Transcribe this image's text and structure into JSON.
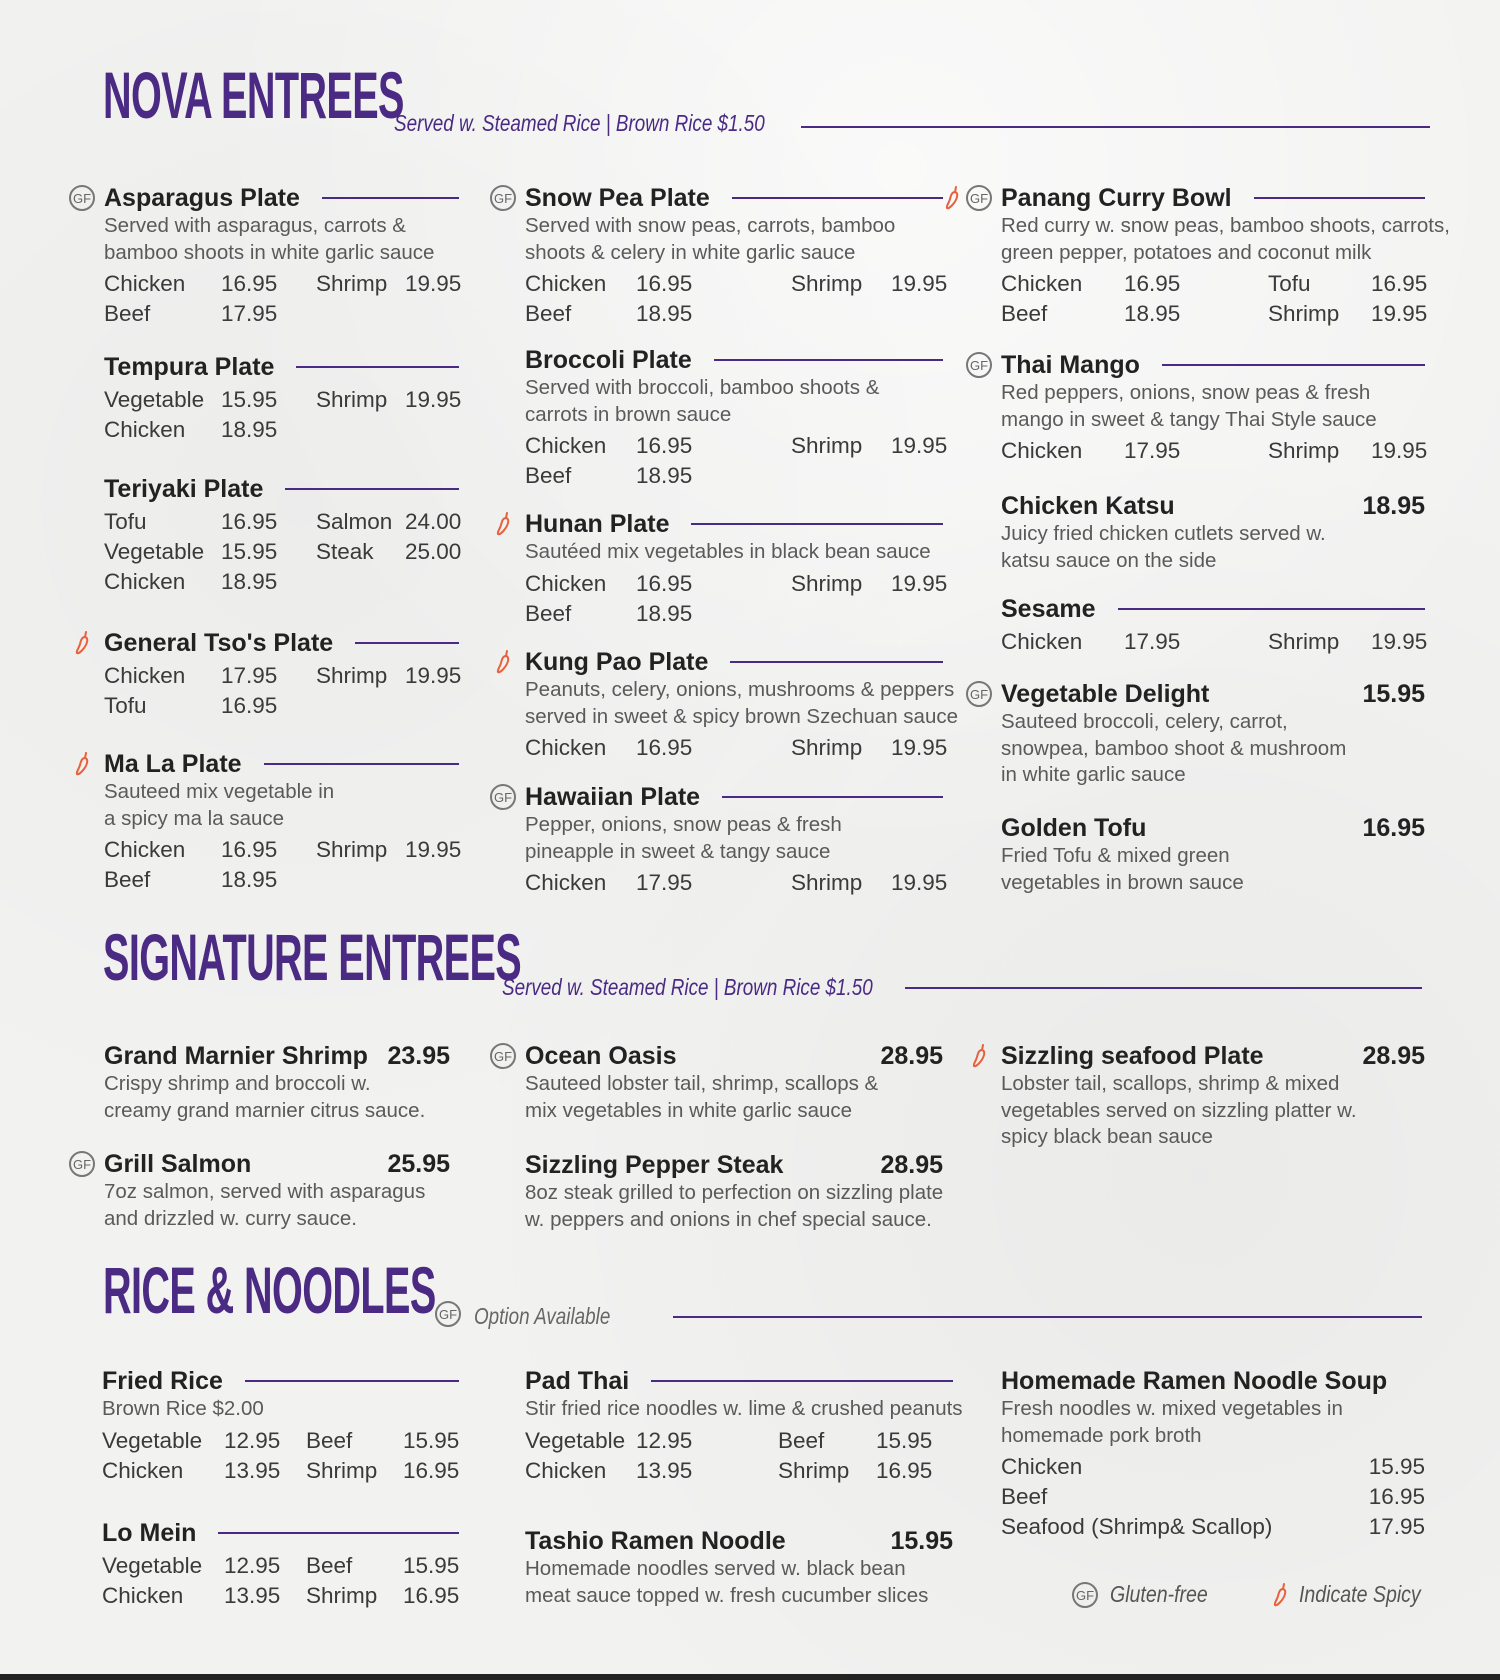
{
  "colors": {
    "accent": "#4a2a82",
    "spicy": "#e8603c",
    "text": "#222222"
  },
  "sections": [
    {
      "title": "NOVA ENTREES",
      "subtitle": "Served w. Steamed Rice  |  Brown Rice $1.50",
      "columns": [
        [
          {
            "name": "Asparagus Plate",
            "gf": true,
            "desc": [
              "Served with asparagus, carrots &",
              "bamboo shoots in white garlic sauce"
            ],
            "rows": [
              [
                "Chicken",
                "16.95",
                "Shrimp",
                "19.95"
              ],
              [
                "Beef",
                "17.95"
              ]
            ]
          },
          {
            "name": "Tempura Plate",
            "rows": [
              [
                "Vegetable",
                "15.95",
                "Shrimp",
                "19.95"
              ],
              [
                "Chicken",
                "18.95"
              ]
            ]
          },
          {
            "name": "Teriyaki Plate",
            "rows": [
              [
                "Tofu",
                "16.95",
                "Salmon",
                "24.00"
              ],
              [
                "Vegetable",
                "15.95",
                "Steak",
                "25.00"
              ],
              [
                "Chicken",
                "18.95"
              ]
            ]
          },
          {
            "name": "General Tso's Plate",
            "spicy": true,
            "rows": [
              [
                "Chicken",
                "17.95",
                "Shrimp",
                "19.95"
              ],
              [
                "Tofu",
                "16.95"
              ]
            ]
          },
          {
            "name": "Ma La Plate",
            "spicy": true,
            "desc": [
              "Sauteed mix vegetable in",
              "a spicy ma la sauce"
            ],
            "rows": [
              [
                "Chicken",
                "16.95",
                "Shrimp",
                "19.95"
              ],
              [
                "Beef",
                "18.95"
              ]
            ]
          }
        ],
        [
          {
            "name": "Snow Pea Plate",
            "gf": true,
            "desc": [
              "Served with snow peas, carrots, bamboo",
              "shoots & celery in white garlic sauce"
            ],
            "rows": [
              [
                "Chicken",
                "16.95",
                "Shrimp",
                "19.95"
              ],
              [
                "Beef",
                "18.95"
              ]
            ]
          },
          {
            "name": "Broccoli Plate",
            "desc": [
              "Served with broccoli, bamboo shoots &",
              "carrots in brown sauce"
            ],
            "rows": [
              [
                "Chicken",
                "16.95",
                "Shrimp",
                "19.95"
              ],
              [
                "Beef",
                "18.95"
              ]
            ]
          },
          {
            "name": "Hunan Plate",
            "spicy": true,
            "desc": [
              "Sautéed mix vegetables in black bean sauce"
            ],
            "rows": [
              [
                "Chicken",
                "16.95",
                "Shrimp",
                "19.95"
              ],
              [
                "Beef",
                "18.95"
              ]
            ]
          },
          {
            "name": "Kung Pao Plate",
            "spicy": true,
            "desc": [
              "Peanuts, celery, onions, mushrooms & peppers",
              "served in sweet & spicy brown Szechuan sauce"
            ],
            "rows": [
              [
                "Chicken",
                "16.95",
                "Shrimp",
                "19.95"
              ]
            ]
          },
          {
            "name": "Hawaiian Plate",
            "gf": true,
            "desc": [
              "Pepper, onions, snow peas & fresh",
              "pineapple in sweet & tangy sauce"
            ],
            "rows": [
              [
                "Chicken",
                "17.95",
                "Shrimp",
                "19.95"
              ]
            ]
          }
        ],
        [
          {
            "name": "Panang Curry Bowl",
            "gf": true,
            "spicy": true,
            "desc": [
              "Red curry w. snow peas, bamboo shoots, carrots,",
              "green pepper, potatoes and coconut milk"
            ],
            "rows": [
              [
                "Chicken",
                "16.95",
                "Tofu",
                "16.95"
              ],
              [
                "Beef",
                "18.95",
                "Shrimp",
                "19.95"
              ]
            ]
          },
          {
            "name": "Thai Mango",
            "gf": true,
            "desc": [
              "Red peppers, onions, snow peas & fresh",
              "mango in sweet & tangy Thai Style sauce"
            ],
            "rows": [
              [
                "Chicken",
                "17.95",
                "Shrimp",
                "19.95"
              ]
            ]
          },
          {
            "name": "Chicken Katsu",
            "price": "18.95",
            "desc": [
              "Juicy fried chicken cutlets served w.",
              "katsu sauce on the side"
            ]
          },
          {
            "name": "Sesame",
            "rows": [
              [
                "Chicken",
                "17.95",
                "Shrimp",
                "19.95"
              ]
            ]
          },
          {
            "name": "Vegetable Delight",
            "gf": true,
            "price": "15.95",
            "desc": [
              "Sauteed broccoli, celery, carrot,",
              "snowpea, bamboo shoot & mushroom",
              "in white garlic sauce"
            ]
          },
          {
            "name": "Golden Tofu",
            "price": "16.95",
            "desc": [
              "Fried Tofu & mixed green",
              "vegetables in brown sauce"
            ]
          }
        ]
      ]
    },
    {
      "title": "SIGNATURE ENTREES",
      "subtitle": "Served w. Steamed Rice  |  Brown Rice $1.50",
      "columns": [
        [
          {
            "name": "Grand Marnier Shrimp",
            "price": "23.95",
            "desc": [
              "Crispy shrimp and broccoli w.",
              "creamy grand marnier citrus sauce."
            ]
          },
          {
            "name": "Grill Salmon",
            "gf": true,
            "price": "25.95",
            "desc": [
              "7oz salmon, served with asparagus",
              "and drizzled w. curry sauce."
            ]
          }
        ],
        [
          {
            "name": "Ocean Oasis",
            "gf": true,
            "price": "28.95",
            "desc": [
              "Sauteed lobster tail, shrimp, scallops &",
              "mix vegetables in white garlic sauce"
            ]
          },
          {
            "name": "Sizzling Pepper Steak",
            "price": "28.95",
            "desc": [
              "8oz steak grilled to perfection on sizzling plate",
              "w. peppers and onions in chef special sauce."
            ]
          }
        ],
        [
          {
            "name": "Sizzling seafood Plate",
            "spicy": true,
            "price": "28.95",
            "desc": [
              "Lobster tail, scallops, shrimp & mixed",
              "vegetables served on sizzling platter w.",
              "spicy black bean sauce"
            ]
          }
        ]
      ]
    },
    {
      "title": "RICE & NOODLES",
      "subtitle": "Option Available",
      "columns": [
        [
          {
            "name": "Fried Rice",
            "desc": [
              "Brown Rice $2.00"
            ],
            "rows": [
              [
                "Vegetable",
                "12.95",
                "Beef",
                "15.95"
              ],
              [
                "Chicken",
                "13.95",
                "Shrimp",
                "16.95"
              ]
            ]
          },
          {
            "name": "Lo Mein",
            "rows": [
              [
                "Vegetable",
                "12.95",
                "Beef",
                "15.95"
              ],
              [
                "Chicken",
                "13.95",
                "Shrimp",
                "16.95"
              ]
            ]
          }
        ],
        [
          {
            "name": "Pad Thai",
            "desc": [
              "Stir fried rice noodles w. lime & crushed peanuts"
            ],
            "rows": [
              [
                "Vegetable",
                "12.95",
                "Beef",
                "15.95"
              ],
              [
                "Chicken",
                "13.95",
                "Shrimp",
                "16.95"
              ]
            ]
          },
          {
            "name": "Tashio Ramen Noodle",
            "price": "15.95",
            "desc": [
              "Homemade noodles served w. black bean",
              "meat sauce topped w. fresh cucumber slices"
            ]
          }
        ],
        [
          {
            "name": "Homemade Ramen Noodle Soup",
            "desc": [
              "Fresh noodles w. mixed vegetables in",
              "homemade pork broth"
            ],
            "rows": [
              [
                "Chicken",
                "15.95"
              ],
              [
                "Beef",
                "16.95"
              ],
              [
                "Seafood (Shrimp& Scallop)",
                "17.95"
              ]
            ]
          }
        ]
      ]
    }
  ],
  "legend": {
    "gf_icon": "gf-circle-icon",
    "gf_label": "Gluten-free",
    "spicy_icon": "chili-pepper-icon",
    "spicy_label": "Indicate Spicy",
    "gf_text": "GF"
  }
}
